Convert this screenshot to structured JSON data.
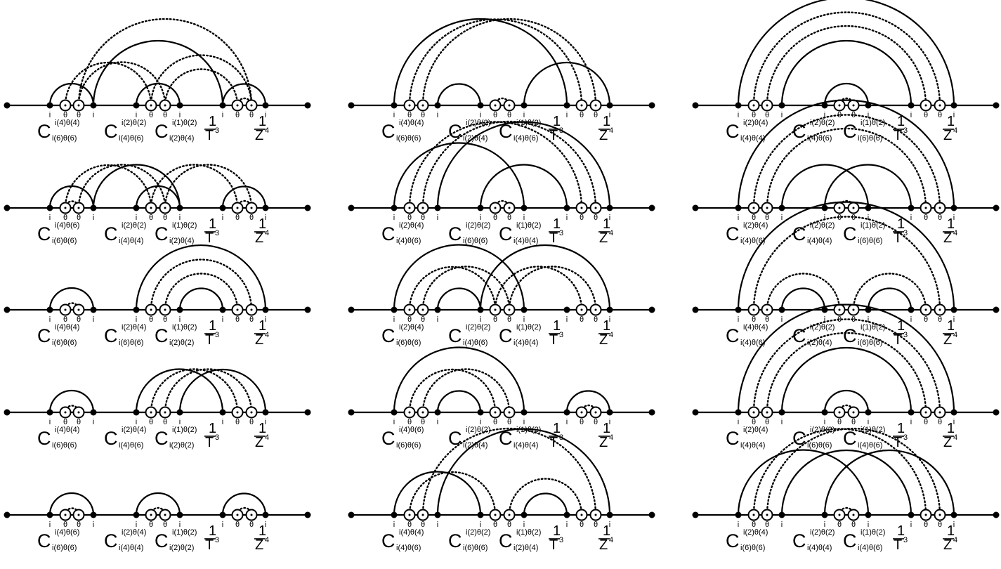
{
  "vertex_labels": [
    "i",
    "θ",
    "θ",
    "i",
    "i",
    "θ",
    "θ",
    "i",
    "i",
    "θ",
    "θ",
    "i"
  ],
  "letter_c": "C",
  "frac_one": "1",
  "frac_t": "T",
  "frac_t_exp": "3",
  "frac_z": "Z",
  "frac_z_exp": "4",
  "diagrams": [
    {
      "solid_arcs": [
        [
          0,
          3
        ],
        [
          4,
          7
        ],
        [
          8,
          11
        ],
        [
          3,
          8
        ]
      ],
      "dotted_arcs": [
        [
          1,
          5
        ],
        [
          2,
          6
        ],
        [
          9,
          10
        ],
        [
          6,
          9
        ],
        [
          5,
          10
        ],
        [
          2,
          10
        ]
      ],
      "c_top": [
        "i(4)θ(4)",
        "i(2)θ(2)",
        "i(1)θ(2)"
      ],
      "c_bottom": [
        "i(6)θ(6)",
        "i(4)θ(6)",
        "i(2)θ(4)"
      ]
    },
    {
      "solid_arcs": [
        [
          0,
          3
        ],
        [
          3,
          7
        ],
        [
          8,
          11
        ],
        [
          4,
          7
        ]
      ],
      "dotted_arcs": [
        [
          1,
          5
        ],
        [
          2,
          6
        ],
        [
          9,
          10
        ],
        [
          5,
          9
        ],
        [
          6,
          10
        ],
        [
          1,
          2
        ]
      ],
      "c_top": [
        "i(4)θ(6)",
        "i(2)θ(2)",
        "i(1)θ(2)"
      ],
      "c_bottom": [
        "i(6)θ(6)",
        "i(4)θ(4)",
        "i(2)θ(4)"
      ]
    },
    {
      "solid_arcs": [
        [
          0,
          3
        ],
        [
          4,
          11
        ],
        [
          7,
          8
        ]
      ],
      "dotted_arcs": [
        [
          1,
          2
        ],
        [
          5,
          10
        ],
        [
          6,
          9
        ]
      ],
      "c_top": [
        "i(4)θ(4)",
        "i(2)θ(4)",
        "i(1)θ(2)"
      ],
      "c_bottom": [
        "i(6)θ(6)",
        "i(6)θ(6)",
        "i(2)θ(2)"
      ]
    },
    {
      "solid_arcs": [
        [
          0,
          3
        ],
        [
          4,
          8
        ],
        [
          7,
          11
        ]
      ],
      "dotted_arcs": [
        [
          1,
          2
        ],
        [
          5,
          9
        ],
        [
          6,
          10
        ]
      ],
      "c_top": [
        "i(4)θ(4)",
        "i(2)θ(4)",
        "i(1)θ(2)"
      ],
      "c_bottom": [
        "i(6)θ(6)",
        "i(4)θ(6)",
        "i(2)θ(2)"
      ]
    },
    {
      "solid_arcs": [
        [
          0,
          3
        ],
        [
          4,
          7
        ],
        [
          8,
          11
        ]
      ],
      "dotted_arcs": [
        [
          1,
          2
        ],
        [
          5,
          6
        ],
        [
          9,
          10
        ]
      ],
      "c_top": [
        "i(4)θ(6)",
        "i(2)θ(4)",
        "i(1)θ(2)"
      ],
      "c_bottom": [
        "i(6)θ(6)",
        "i(4)θ(4)",
        "i(2)θ(2)"
      ]
    },
    {
      "solid_arcs": [
        [
          0,
          8
        ],
        [
          3,
          4
        ],
        [
          7,
          11
        ]
      ],
      "dotted_arcs": [
        [
          1,
          9
        ],
        [
          2,
          10
        ],
        [
          5,
          6
        ]
      ],
      "c_top": [
        "i(4)θ(4)",
        "i(2)θ(2)",
        "i(1)θ(2)"
      ],
      "c_bottom": [
        "i(6)θ(6)",
        "i(2)θ(4)",
        "i(4)θ(6)"
      ]
    },
    {
      "solid_arcs": [
        [
          0,
          7
        ],
        [
          3,
          11
        ],
        [
          4,
          8
        ]
      ],
      "dotted_arcs": [
        [
          1,
          9
        ],
        [
          2,
          10
        ],
        [
          5,
          6
        ]
      ],
      "c_top": [
        "i(2)θ(4)",
        "i(2)θ(2)",
        "i(1)θ(2)"
      ],
      "c_bottom": [
        "i(4)θ(6)",
        "i(6)θ(6)",
        "i(4)θ(4)"
      ]
    },
    {
      "solid_arcs": [
        [
          0,
          7
        ],
        [
          3,
          4
        ],
        [
          4,
          11
        ]
      ],
      "dotted_arcs": [
        [
          1,
          5
        ],
        [
          2,
          6
        ],
        [
          5,
          9
        ],
        [
          6,
          10
        ]
      ],
      "c_top": [
        "i(2)θ(4)",
        "i(2)θ(2)",
        "i(1)θ(2)"
      ],
      "c_bottom": [
        "i(6)θ(6)",
        "i(4)θ(6)",
        "i(4)θ(4)"
      ]
    },
    {
      "solid_arcs": [
        [
          0,
          7
        ],
        [
          3,
          4
        ],
        [
          8,
          11
        ]
      ],
      "dotted_arcs": [
        [
          1,
          5
        ],
        [
          2,
          6
        ],
        [
          9,
          10
        ]
      ],
      "c_top": [
        "i(4)θ(6)",
        "i(2)θ(2)",
        "i(1)θ(2)"
      ],
      "c_bottom": [
        "i(6)θ(6)",
        "i(2)θ(4)",
        "i(4)θ(4)"
      ]
    },
    {
      "solid_arcs": [
        [
          0,
          4
        ],
        [
          3,
          11
        ],
        [
          7,
          8
        ]
      ],
      "dotted_arcs": [
        [
          1,
          5
        ],
        [
          2,
          10
        ],
        [
          6,
          9
        ]
      ],
      "c_top": [
        "i(4)θ(4)",
        "i(2)θ(2)",
        "i(1)θ(2)"
      ],
      "c_bottom": [
        "i(4)θ(6)",
        "i(6)θ(6)",
        "i(2)θ(4)"
      ]
    },
    {
      "solid_arcs": [
        [
          0,
          11
        ],
        [
          3,
          8
        ],
        [
          4,
          7
        ]
      ],
      "dotted_arcs": [
        [
          1,
          10
        ],
        [
          2,
          9
        ],
        [
          5,
          6
        ]
      ],
      "c_top": [
        "i(2)θ(4)",
        "i(2)θ(2)",
        "i(1)θ(2)"
      ],
      "c_bottom": [
        "i(4)θ(4)",
        "i(4)θ(6)",
        "i(6)θ(6)"
      ]
    },
    {
      "solid_arcs": [
        [
          0,
          11
        ],
        [
          3,
          7
        ],
        [
          4,
          8
        ]
      ],
      "dotted_arcs": [
        [
          1,
          10
        ],
        [
          2,
          9
        ],
        [
          5,
          6
        ]
      ],
      "c_top": [
        "i(2)θ(4)",
        "i(2)θ(2)",
        "i(1)θ(2)"
      ],
      "c_bottom": [
        "i(4)θ(6)",
        "i(4)θ(4)",
        "i(6)θ(6)"
      ]
    },
    {
      "solid_arcs": [
        [
          0,
          11
        ],
        [
          3,
          4
        ],
        [
          7,
          8
        ]
      ],
      "dotted_arcs": [
        [
          1,
          10
        ],
        [
          2,
          5
        ],
        [
          6,
          9
        ]
      ],
      "c_top": [
        "i(4)θ(4)",
        "i(2)θ(2)",
        "i(1)θ(2)"
      ],
      "c_bottom": [
        "i(4)θ(6)",
        "i(2)θ(4)",
        "i(6)θ(6)"
      ]
    },
    {
      "solid_arcs": [
        [
          0,
          11
        ],
        [
          3,
          8
        ],
        [
          4,
          7
        ]
      ],
      "dotted_arcs": [
        [
          1,
          10
        ],
        [
          2,
          9
        ],
        [
          5,
          6
        ]
      ],
      "c_top": [
        "i(2)θ(4)",
        "i(2)θ(2)",
        "i(1)θ(2)"
      ],
      "c_bottom": [
        "i(4)θ(4)",
        "i(6)θ(6)",
        "i(4)θ(6)"
      ]
    },
    {
      "solid_arcs": [
        [
          0,
          7
        ],
        [
          3,
          8
        ],
        [
          4,
          11
        ]
      ],
      "dotted_arcs": [
        [
          1,
          9
        ],
        [
          2,
          10
        ],
        [
          5,
          6
        ]
      ],
      "c_top": [
        "i(2)θ(4)",
        "i(2)θ(2)",
        "i(1)θ(2)"
      ],
      "c_bottom": [
        "i(6)θ(6)",
        "i(4)θ(4)",
        "i(4)θ(6)"
      ]
    }
  ]
}
